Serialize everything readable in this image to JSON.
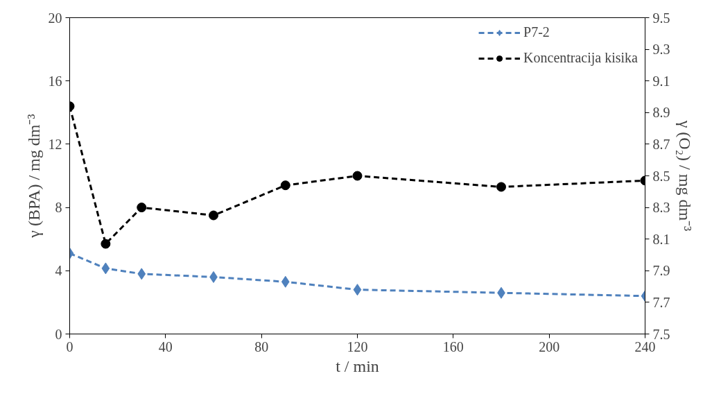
{
  "chart_data": {
    "type": "line",
    "xlabel": "t / min",
    "ylabel": "γ (BPA) / mg dm⁻³",
    "y2label": "γ (O₂) / mg dm⁻³",
    "x": [
      0,
      15,
      30,
      60,
      90,
      120,
      180,
      240
    ],
    "series": [
      {
        "name": "P7-2",
        "color": "#4f81bd",
        "marker": "diamond",
        "line_style": "dashed",
        "values": [
          5.1,
          4.15,
          3.8,
          3.6,
          3.3,
          2.8,
          2.6,
          2.4
        ]
      },
      {
        "name": "Koncentracija kisika",
        "color": "#000000",
        "marker": "circle",
        "line_style": "dashed",
        "axis": "y2",
        "values": [
          8.94,
          8.07,
          8.3,
          8.25,
          8.44,
          8.5,
          8.43,
          8.47
        ]
      }
    ],
    "xlim": [
      0,
      240
    ],
    "xticks": [
      0,
      40,
      80,
      120,
      160,
      200,
      240
    ],
    "ylim": [
      0,
      20
    ],
    "yticks": [
      0,
      4,
      8,
      12,
      16,
      20
    ],
    "y2lim": [
      7.5,
      9.5
    ],
    "y2ticks": [
      {
        "value": 7.5,
        "label": "7.5"
      },
      {
        "value": 7.7,
        "label": "7.7"
      },
      {
        "value": 7.9,
        "label": "7.9"
      },
      {
        "value": 8.1,
        "label": "8.1"
      },
      {
        "value": 8.3,
        "label": "8.3"
      },
      {
        "value": 8.5,
        "label": "8.5"
      },
      {
        "value": 8.7,
        "label": "8.7"
      },
      {
        "value": 8.9,
        "label": "8.9"
      },
      {
        "value": 9.1,
        "label": "9.1"
      },
      {
        "value": 9.3,
        "label": "9.3"
      },
      {
        "value": 9.5,
        "label": "9.5"
      }
    ],
    "grid": false,
    "legend": "top right"
  }
}
